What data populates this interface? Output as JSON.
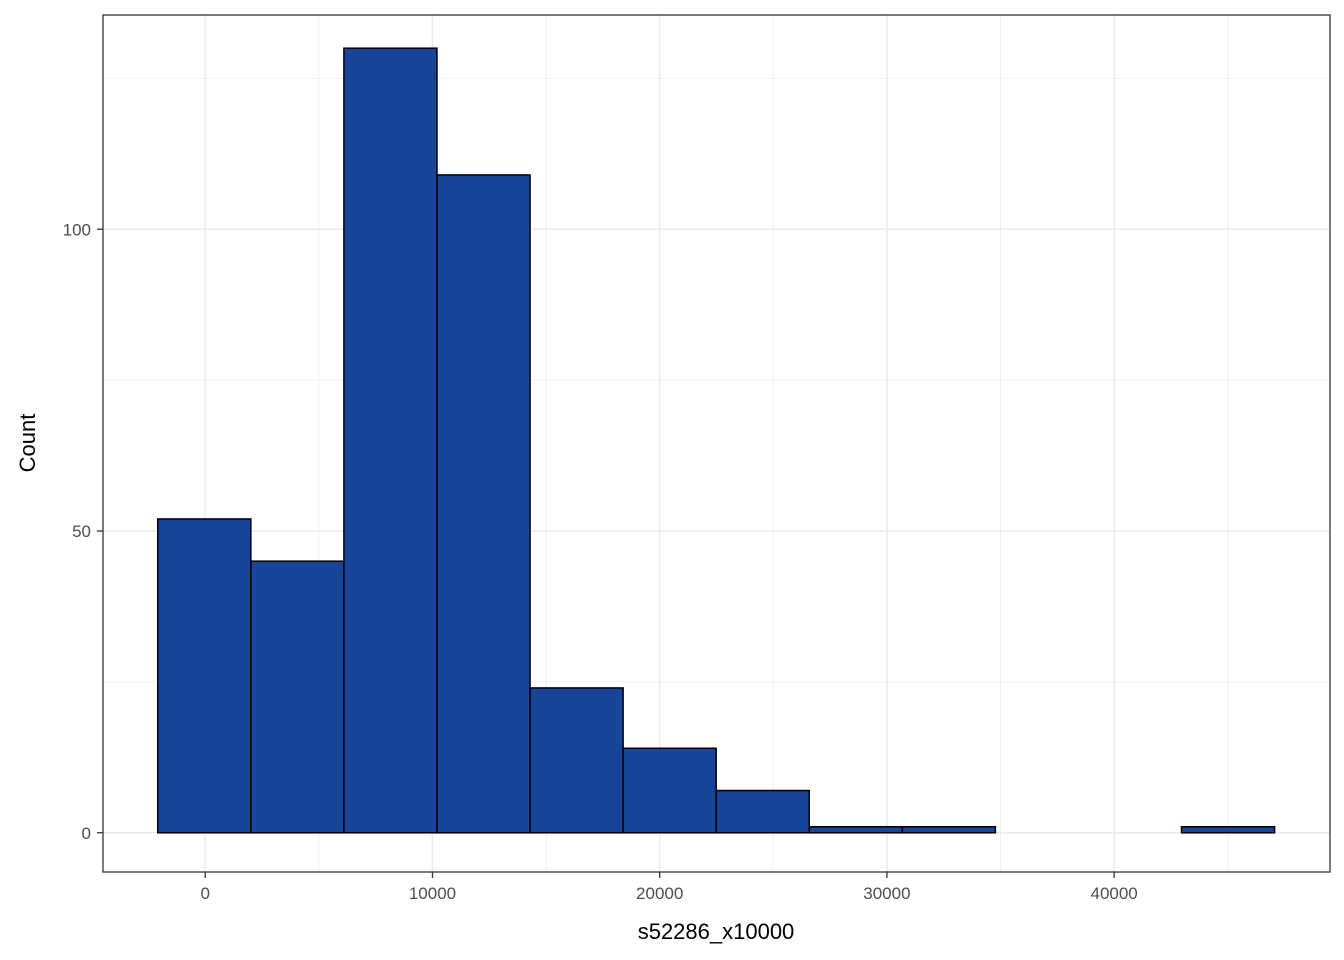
{
  "chart_data": {
    "type": "bar",
    "subtype": "histogram",
    "xlabel": "s52286_x10000",
    "ylabel": "Count",
    "xlim": [
      -4500,
      49500
    ],
    "ylim": [
      -6.5,
      135.5
    ],
    "x_ticks": [
      0,
      10000,
      20000,
      30000,
      40000
    ],
    "y_ticks": [
      0,
      50,
      100
    ],
    "grid": true,
    "fill_color": "#18449A",
    "bin_edges": [
      -2090,
      2006,
      6102,
      10198,
      14294,
      18390,
      22486,
      26582,
      30678,
      34774,
      38870,
      42966,
      47062
    ],
    "counts": [
      52,
      45,
      130,
      109,
      24,
      14,
      7,
      1,
      1,
      0,
      0,
      1
    ]
  }
}
